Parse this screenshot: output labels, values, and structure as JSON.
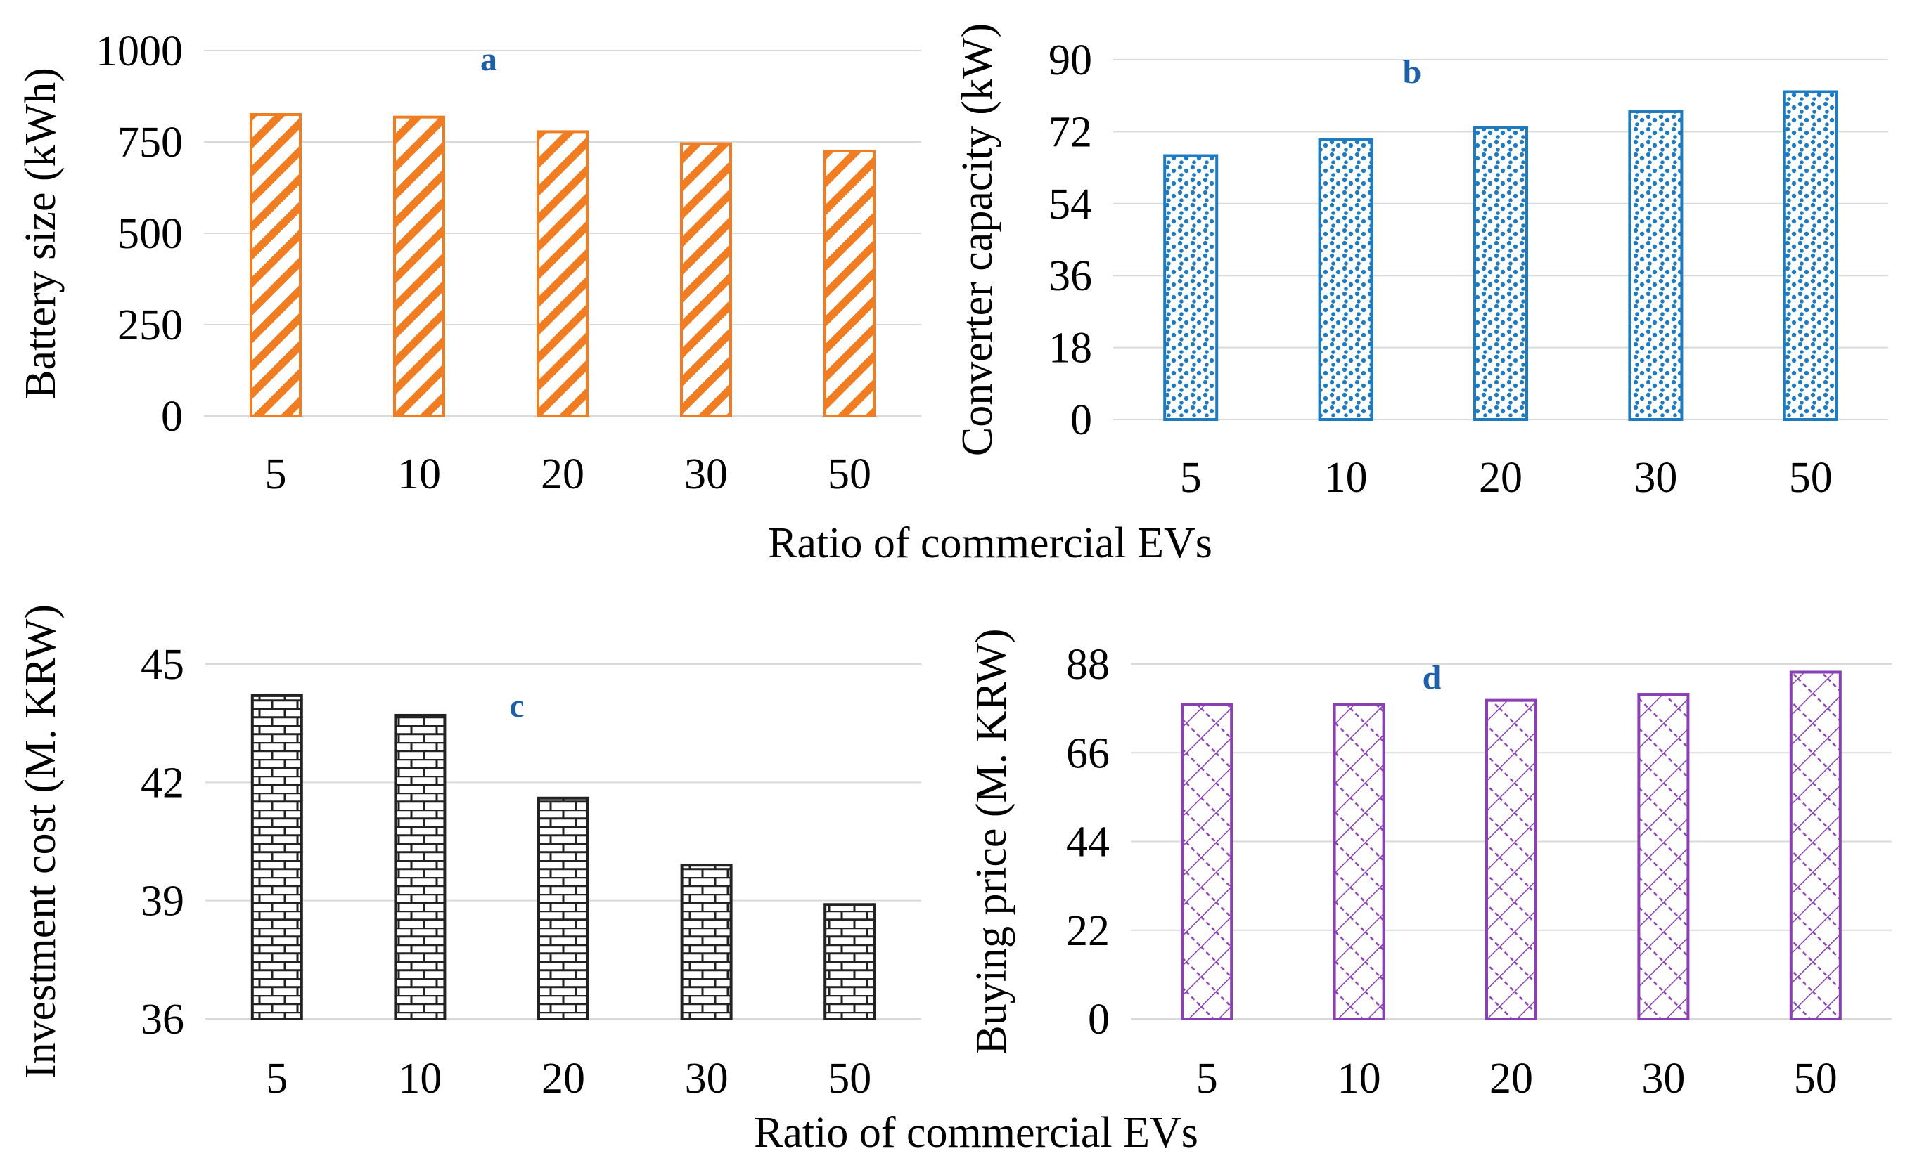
{
  "figure": {
    "shared_xlabel_top": "Ratio of commercial EVs",
    "shared_xlabel_bottom": "Ratio of commercial EVs"
  },
  "chart_data": [
    {
      "type": "bar",
      "panel": "a",
      "ylabel": "Battery size (kWh)",
      "xlabel": "Ratio of commercial EVs",
      "categories": [
        "5",
        "10",
        "20",
        "30",
        "50"
      ],
      "values": [
        825,
        818,
        778,
        745,
        725
      ],
      "ylim": [
        0,
        1000
      ],
      "yticks": [
        "0",
        "250",
        "500",
        "750",
        "1000"
      ],
      "grid": true,
      "color": "#f07d22",
      "pattern": "diagonal-stripes",
      "letter_color": "#1f5fa8"
    },
    {
      "type": "bar",
      "panel": "b",
      "ylabel": "Converter capacity (kW)",
      "xlabel": "Ratio of commercial EVs",
      "categories": [
        "5",
        "10",
        "20",
        "30",
        "50"
      ],
      "values": [
        66,
        70,
        73,
        77,
        82
      ],
      "ylim": [
        0,
        90
      ],
      "yticks": [
        "0",
        "18",
        "36",
        "54",
        "72",
        "90"
      ],
      "grid": true,
      "color": "#1f7bc0",
      "pattern": "dots",
      "letter_color": "#1f5fa8"
    },
    {
      "type": "bar",
      "panel": "c",
      "ylabel": "Investment cost (M. KRW)",
      "xlabel": "Ratio of commercial EVs",
      "categories": [
        "5",
        "10",
        "20",
        "30",
        "50"
      ],
      "values": [
        44.2,
        43.7,
        41.6,
        39.9,
        38.9
      ],
      "ylim": [
        36,
        45
      ],
      "yticks": [
        "36",
        "39",
        "42",
        "45"
      ],
      "grid": true,
      "color": "#222222",
      "pattern": "bricks",
      "letter_color": "#1f5fa8"
    },
    {
      "type": "bar",
      "panel": "d",
      "ylabel": "Buying price (M. KRW)",
      "xlabel": "Ratio of commercial EVs",
      "categories": [
        "5",
        "10",
        "20",
        "30",
        "50"
      ],
      "values": [
        78,
        78,
        79,
        80.5,
        86
      ],
      "ylim": [
        0,
        88
      ],
      "yticks": [
        "0",
        "22",
        "44",
        "66",
        "88"
      ],
      "grid": true,
      "color": "#8b3fb5",
      "pattern": "crosshatch-dashed",
      "letter_color": "#1f5fa8"
    }
  ]
}
